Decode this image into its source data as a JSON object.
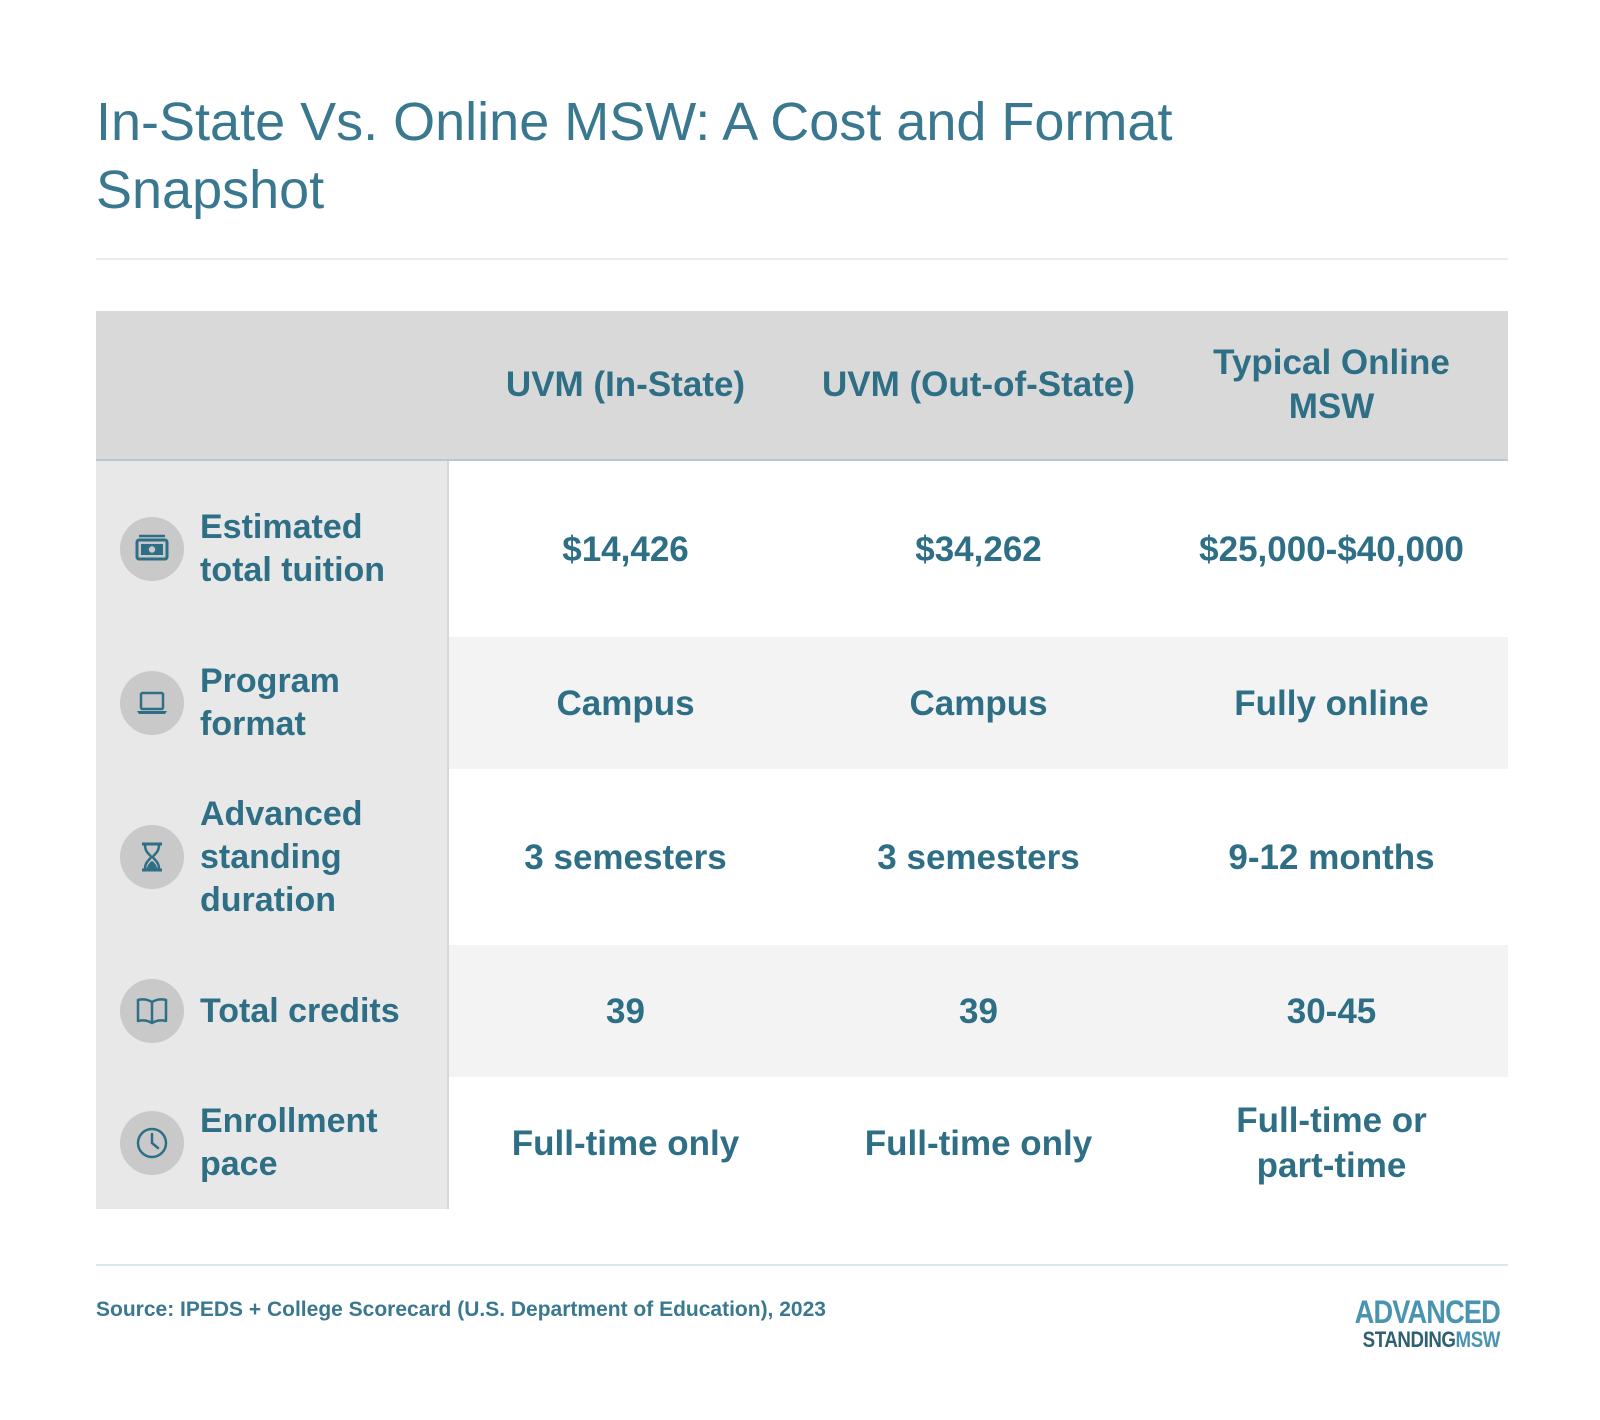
{
  "title": "In-State Vs. Online MSW: A Cost and Format Snapshot",
  "columns": [
    "UVM (In-State)",
    "UVM (Out-of-State)",
    "Typical Online MSW"
  ],
  "rows": [
    {
      "label": "Estimated total tuition",
      "icon": "money-icon",
      "values": [
        "$14,426",
        "$34,262",
        "$25,000-$40,000"
      ]
    },
    {
      "label": "Program format",
      "icon": "laptop-icon",
      "values": [
        "Campus",
        "Campus",
        "Fully online"
      ]
    },
    {
      "label": "Advanced standing duration",
      "icon": "hourglass-icon",
      "values": [
        "3 semesters",
        "3 semesters",
        "9-12 months"
      ]
    },
    {
      "label": "Total credits",
      "icon": "book-icon",
      "values": [
        "39",
        "39",
        "30-45"
      ]
    },
    {
      "label": "Enrollment pace",
      "icon": "clock-icon",
      "values": [
        "Full-time only",
        "Full-time only",
        "Full-time or part-time"
      ]
    }
  ],
  "source": "Source: IPEDS + College Scorecard (U.S. Department of Education), 2023",
  "logo": {
    "line1": "ADVANCED",
    "line2a": "STANDING",
    "line2b": "MSW"
  },
  "colors": {
    "text": "#2e6f86",
    "header_bg": "#d9d9d9",
    "rowhead_bg": "#e8e8e8",
    "alt_bg": "#f3f3f3",
    "logo_accent": "#4a94b2"
  }
}
